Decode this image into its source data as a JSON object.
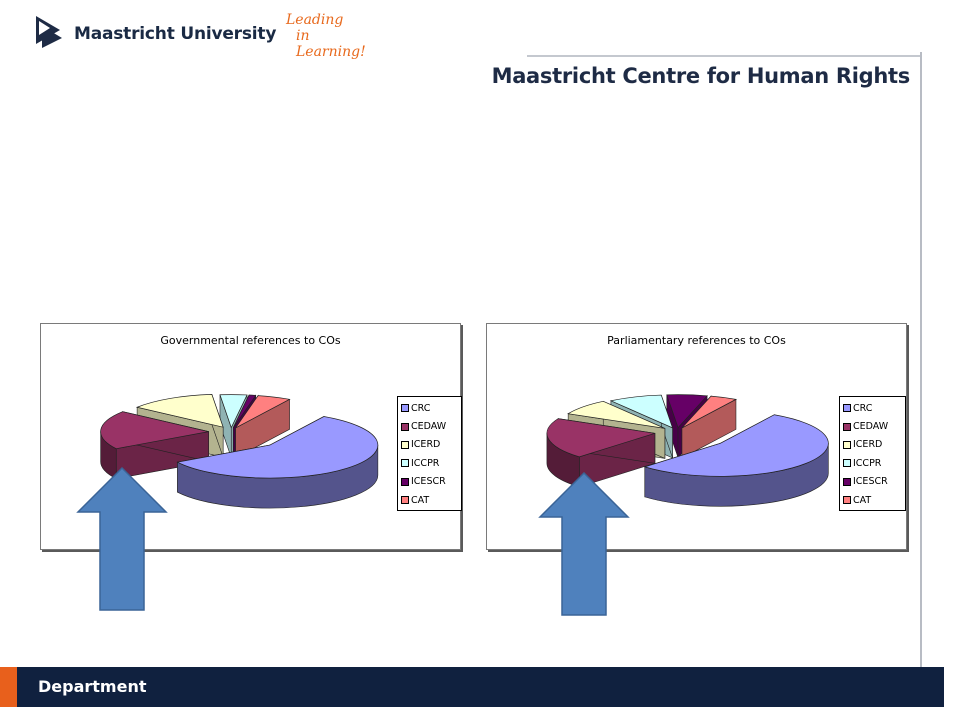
{
  "header": {
    "university_name": "Maastricht University",
    "tagline_line1": "Leading",
    "tagline_line2": "in Learning!",
    "centre_title": "Maastricht Centre for Human Rights"
  },
  "colors": {
    "CRC": "#9999ff",
    "CEDAW": "#993366",
    "ICERD": "#ffffcc",
    "ICCPR": "#ccffff",
    "ICESCR": "#660066",
    "CAT": "#ff8080",
    "arrow": "#4f81bd",
    "footer": "#10213f",
    "footer_accent": "#e8601c"
  },
  "chart_data": [
    {
      "type": "pie",
      "title": "Governmental references to COs",
      "categories": [
        "CRC",
        "CEDAW",
        "ICERD",
        "ICCPR",
        "ICESCR",
        "CAT"
      ],
      "values": [
        58,
        19,
        13,
        4,
        1,
        5
      ],
      "legend": "right",
      "style": "3d-exploded"
    },
    {
      "type": "pie",
      "title": "Parliamentary references to COs",
      "categories": [
        "CRC",
        "CEDAW",
        "ICERD",
        "ICCPR",
        "ICESCR",
        "CAT"
      ],
      "values": [
        54,
        20,
        8,
        8,
        6,
        4
      ],
      "legend": "right",
      "style": "3d-exploded"
    }
  ],
  "footer": {
    "label": "Department"
  }
}
